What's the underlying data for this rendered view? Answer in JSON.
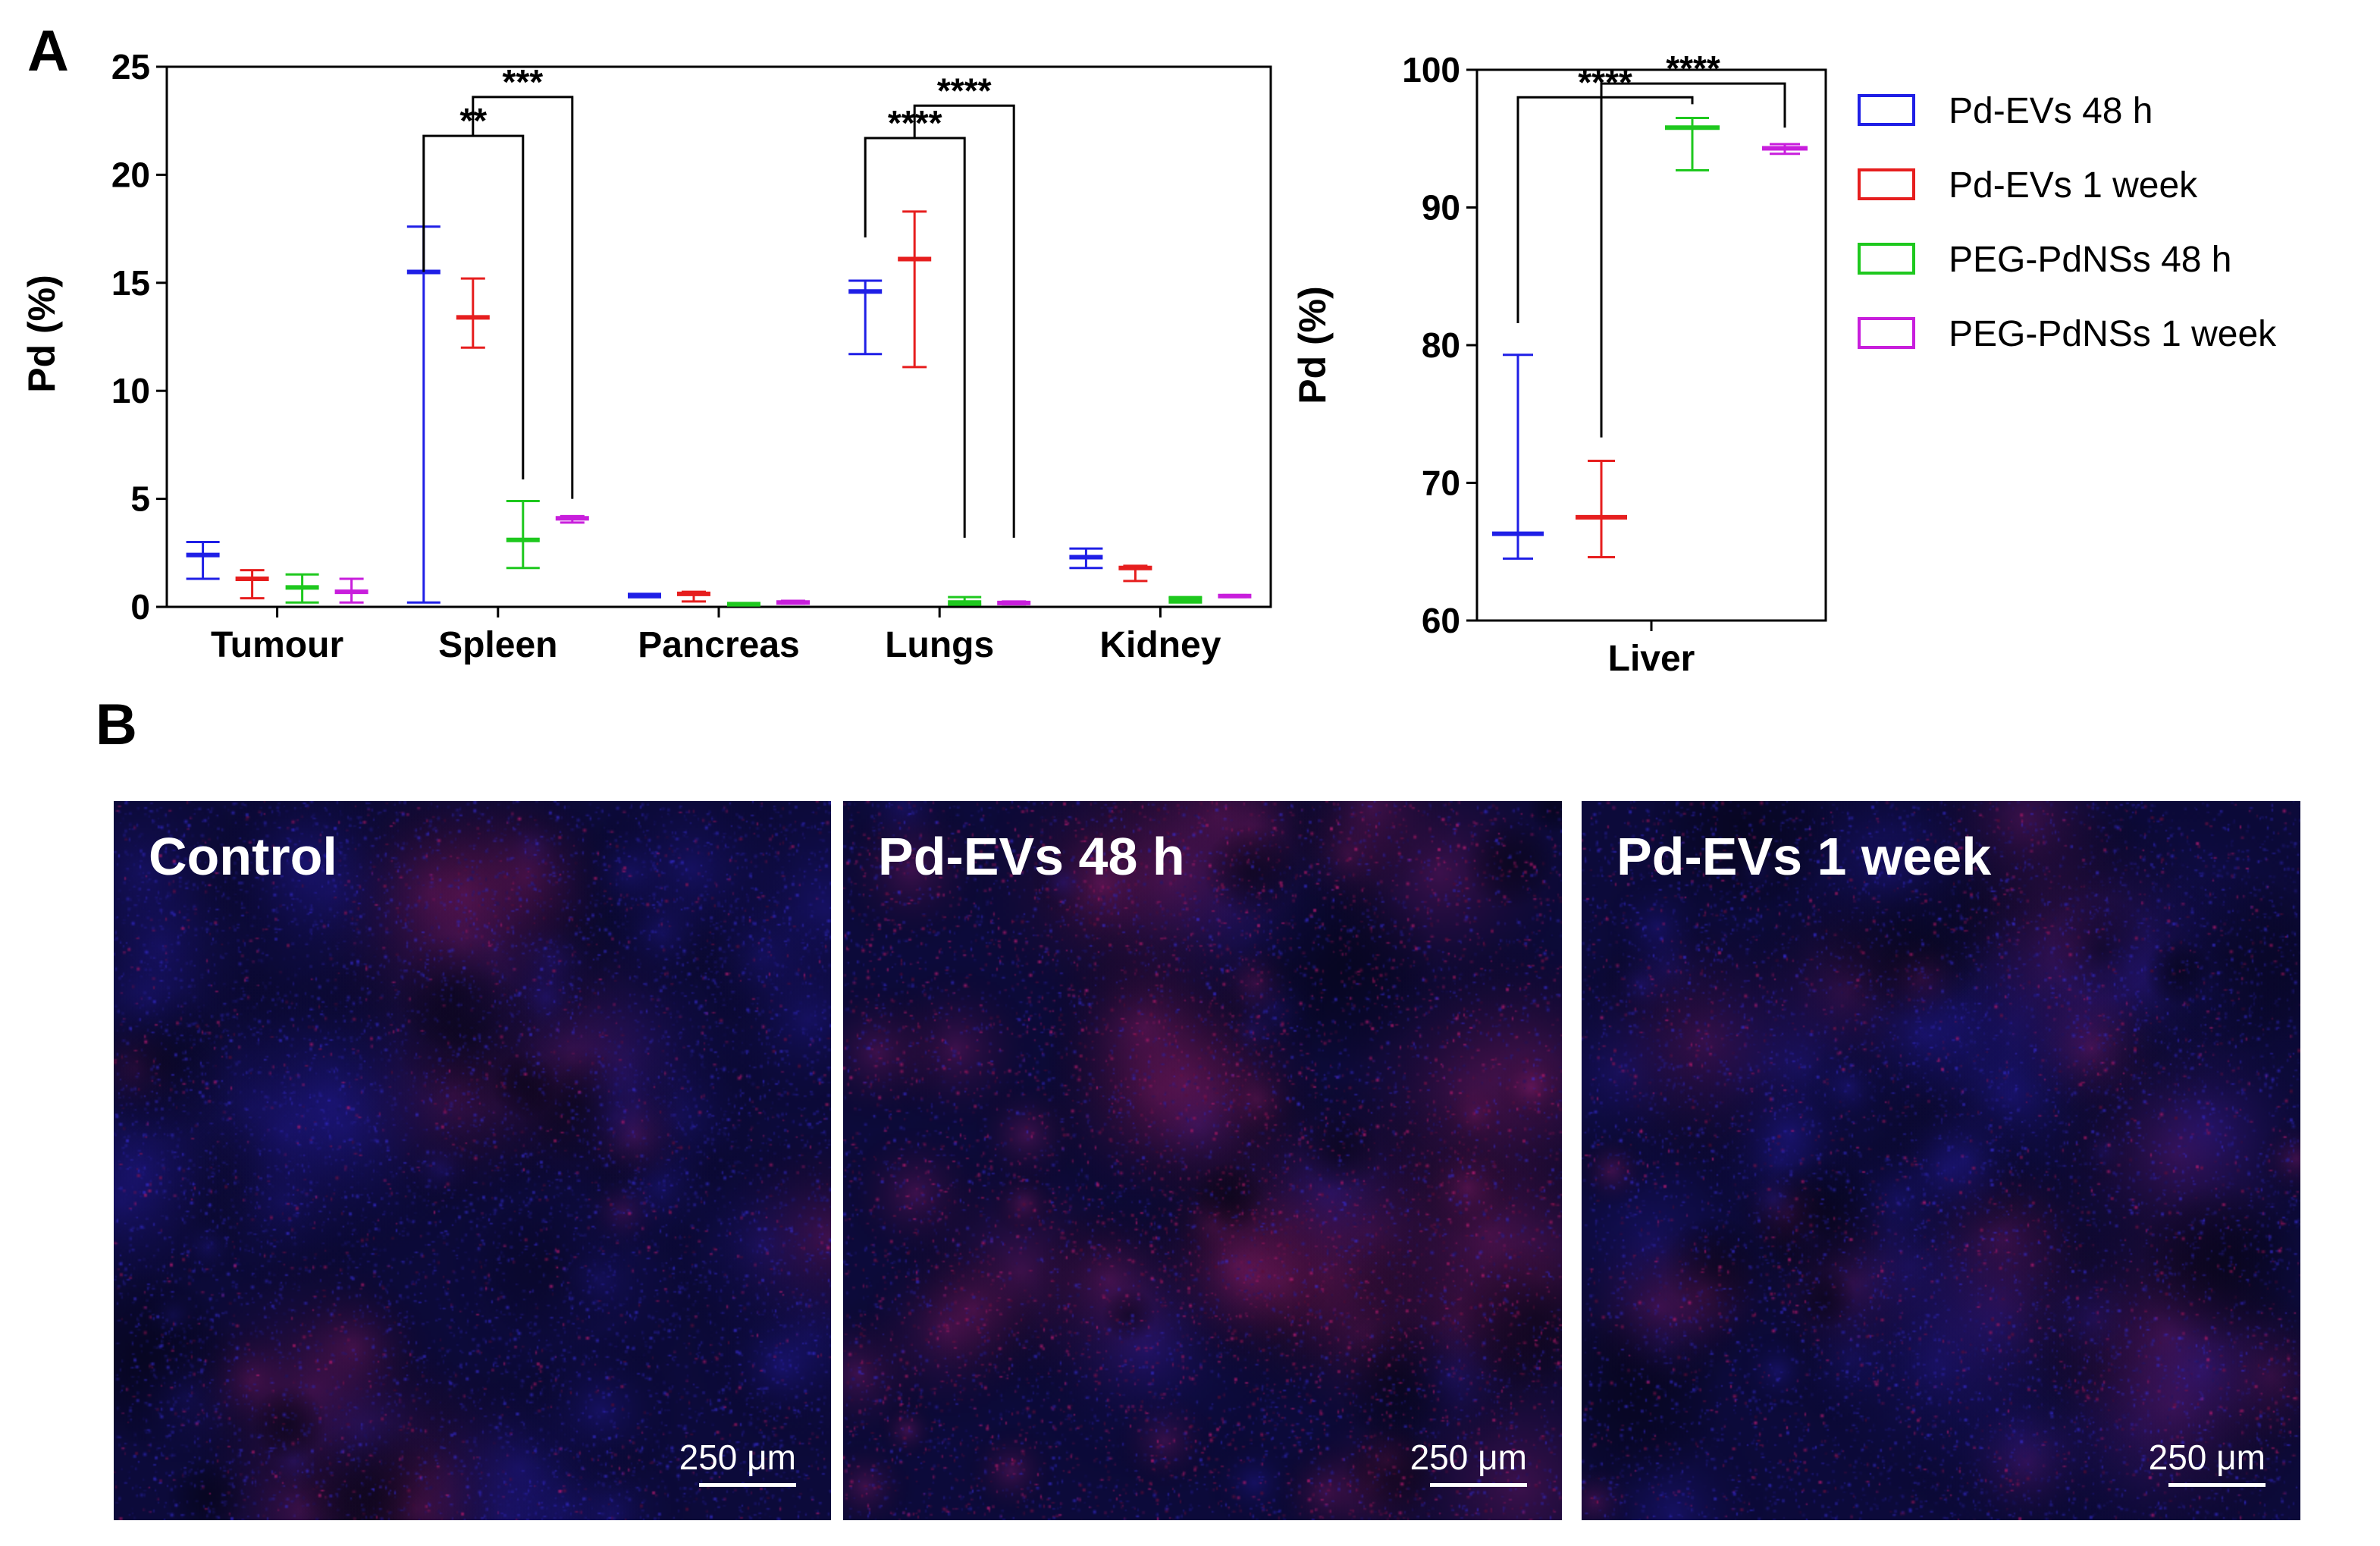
{
  "panel_labels": {
    "a": "A",
    "b": "B"
  },
  "chart_data": [
    {
      "type": "bar",
      "subtype": "floating bars (min to max, line at mean)",
      "ylabel": "Pd (%)",
      "xlabel": "",
      "ylim": [
        0,
        25
      ],
      "yticks": [
        0,
        5,
        10,
        15,
        20,
        25
      ],
      "categories": [
        "Tumour",
        "Spleen",
        "Pancreas",
        "Lungs",
        "Kidney"
      ],
      "series": [
        {
          "name": "Pd-EVs 48 h",
          "color": "#1f1fe6",
          "mean": [
            2.4,
            15.5,
            0.5,
            14.6,
            2.3
          ],
          "min": [
            1.3,
            0.2,
            0.45,
            11.7,
            1.8
          ],
          "max": [
            3.0,
            17.6,
            0.6,
            15.1,
            2.7
          ]
        },
        {
          "name": "Pd-EVs 1 week",
          "color": "#e61e1e",
          "mean": [
            1.3,
            13.4,
            0.6,
            16.1,
            1.8
          ],
          "min": [
            0.4,
            12.0,
            0.25,
            11.1,
            1.2
          ],
          "max": [
            1.7,
            15.2,
            0.7,
            18.3,
            1.9
          ]
        },
        {
          "name": "PEG-PdNSs 48 h",
          "color": "#1ec81e",
          "mean": [
            0.9,
            3.1,
            0.12,
            0.2,
            0.35
          ],
          "min": [
            0.2,
            1.8,
            0.08,
            0.1,
            0.2
          ],
          "max": [
            1.5,
            4.9,
            0.18,
            0.45,
            0.45
          ]
        },
        {
          "name": "PEG-PdNSs 1 week",
          "color": "#c81edc",
          "mean": [
            0.7,
            4.1,
            0.2,
            0.18,
            0.5
          ],
          "min": [
            0.2,
            3.9,
            0.15,
            0.12,
            0.45
          ],
          "max": [
            1.3,
            4.2,
            0.28,
            0.25,
            0.55
          ]
        }
      ],
      "annotations": [
        {
          "category": "Spleen",
          "from_series": 0,
          "to_series": 2,
          "label": "**",
          "from_y": 15.5,
          "to_y": 5.9,
          "bar_y": 21.8
        },
        {
          "category": "Spleen",
          "from_series": 1,
          "to_series": 3,
          "label": "***",
          "from_y": 21.8,
          "to_y": 5.0,
          "bar_y": 23.6
        },
        {
          "category": "Lungs",
          "from_series": 0,
          "to_series": 2,
          "label": "****",
          "from_y": 17.1,
          "to_y": 3.2,
          "bar_y": 21.7
        },
        {
          "category": "Lungs",
          "from_series": 1,
          "to_series": 3,
          "label": "****",
          "from_y": 21.7,
          "to_y": 3.2,
          "bar_y": 23.2
        }
      ]
    },
    {
      "type": "bar",
      "subtype": "floating bars (min to max, line at mean)",
      "ylabel": "Pd (%)",
      "xlabel": "",
      "ylim": [
        60,
        100
      ],
      "yticks": [
        60,
        70,
        80,
        90,
        100
      ],
      "categories": [
        "Liver"
      ],
      "series": [
        {
          "name": "Pd-EVs 48 h",
          "color": "#1f1fe6",
          "mean": [
            66.3
          ],
          "min": [
            64.5
          ],
          "max": [
            79.3
          ]
        },
        {
          "name": "Pd-EVs 1 week",
          "color": "#e61e1e",
          "mean": [
            67.5
          ],
          "min": [
            64.6
          ],
          "max": [
            71.6
          ]
        },
        {
          "name": "PEG-PdNSs 48 h",
          "color": "#1ec81e",
          "mean": [
            95.8
          ],
          "min": [
            92.7
          ],
          "max": [
            96.5
          ]
        },
        {
          "name": "PEG-PdNSs 1 week",
          "color": "#c81edc",
          "mean": [
            94.3
          ],
          "min": [
            93.9
          ],
          "max": [
            94.6
          ]
        }
      ],
      "annotations": [
        {
          "category": "Liver",
          "from_series": 0,
          "to_series": 2,
          "label": "****",
          "from_y": 81.6,
          "to_y": 97.5,
          "bar_y": 98.0
        },
        {
          "category": "Liver",
          "from_series": 1,
          "to_series": 3,
          "label": "****",
          "from_y": 73.3,
          "to_y": 95.8,
          "bar_y": 99.0
        }
      ]
    }
  ],
  "legend": {
    "entries": [
      "Pd-EVs 48 h",
      "Pd-EVs 1 week",
      "PEG-PdNSs 48 h",
      "PEG-PdNSs 1 week"
    ],
    "colors": [
      "#1f1fe6",
      "#e61e1e",
      "#1ec81e",
      "#c81edc"
    ]
  },
  "micrographs": [
    {
      "label": "Control",
      "scale_bar": "250 μm",
      "red_amount": 0.25
    },
    {
      "label": "Pd-EVs 48 h",
      "scale_bar": "250 μm",
      "red_amount": 0.75
    },
    {
      "label": "Pd-EVs 1 week",
      "scale_bar": "250 μm",
      "red_amount": 0.35
    }
  ]
}
